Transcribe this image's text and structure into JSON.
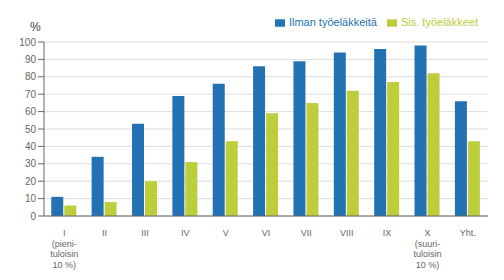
{
  "chart_data": {
    "type": "bar",
    "categories": [
      "I\n(pieni-\ntuloisin\n10 %)",
      "II",
      "III",
      "IV",
      "V",
      "VI",
      "VII",
      "VIII",
      "IX",
      "X\n(suuri-\ntuloisin\n10 %)",
      "Yht."
    ],
    "series": [
      {
        "name": "Ilman työeläkkeitä",
        "color": "#2272b4",
        "values": [
          11,
          34,
          53,
          69,
          76,
          86,
          89,
          94,
          96,
          98,
          66
        ]
      },
      {
        "name": "Sis. työeläkkeet",
        "color": "#bece3b",
        "values": [
          6,
          8,
          20,
          31,
          43,
          59,
          65,
          72,
          77,
          82,
          43
        ]
      }
    ],
    "ylabel": "%",
    "ylim": [
      0,
      100
    ],
    "yticks": [
      0,
      10,
      20,
      30,
      40,
      50,
      60,
      70,
      80,
      90,
      100
    ],
    "grid": true,
    "legend": "top"
  }
}
